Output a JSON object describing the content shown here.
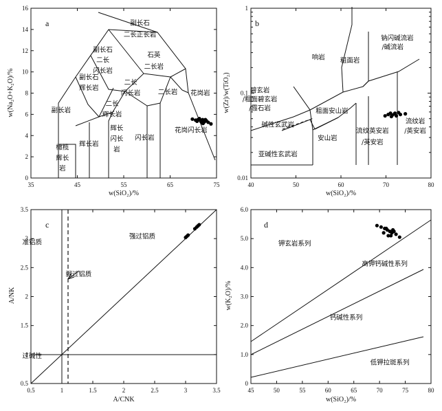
{
  "chart_data": [
    {
      "type": "scatter",
      "panel": "a",
      "xlabel": "w(SiO2)/%",
      "ylabel": "w(Na2O+K2O)/%",
      "xlim": [
        35,
        75
      ],
      "ylim": [
        0,
        16
      ],
      "x_ticks": [
        "35",
        "45",
        "55",
        "65",
        "75"
      ],
      "y_ticks": [
        "0",
        "2",
        "4",
        "6",
        "8",
        "10",
        "12",
        "14",
        "16"
      ],
      "field_labels": [
        {
          "text": "副长石",
          "x": 58.5,
          "y": 14.4
        },
        {
          "text": "二长正长岩",
          "x": 58.5,
          "y": 13.3
        },
        {
          "text": "副长石",
          "x": 50.5,
          "y": 11.9
        },
        {
          "text": "二长",
          "x": 50.5,
          "y": 10.9
        },
        {
          "text": "闪长岩",
          "x": 50.5,
          "y": 9.9
        },
        {
          "text": "石英",
          "x": 61.5,
          "y": 11.4
        },
        {
          "text": "二长岩",
          "x": 61.5,
          "y": 10.3
        },
        {
          "text": "副长石",
          "x": 47.5,
          "y": 9.3
        },
        {
          "text": "辉长岩",
          "x": 47.5,
          "y": 8.3
        },
        {
          "text": "二长",
          "x": 56.5,
          "y": 8.8
        },
        {
          "text": "闪长岩",
          "x": 56.5,
          "y": 7.8
        },
        {
          "text": "二长岩",
          "x": 64.5,
          "y": 7.9
        },
        {
          "text": "花岗岩",
          "x": 71.5,
          "y": 7.8
        },
        {
          "text": "二长",
          "x": 52.5,
          "y": 6.8
        },
        {
          "text": "辉长岩",
          "x": 52.5,
          "y": 5.8
        },
        {
          "text": "副长岩",
          "x": 41.5,
          "y": 6.2
        },
        {
          "text": "辉长",
          "x": 53.5,
          "y": 4.5
        },
        {
          "text": "闪长",
          "x": 53.5,
          "y": 3.5
        },
        {
          "text": "岩",
          "x": 53.5,
          "y": 2.5
        },
        {
          "text": "闪长岩",
          "x": 59.5,
          "y": 3.6
        },
        {
          "text": "花岗闪长岩",
          "x": 69.5,
          "y": 4.3
        },
        {
          "text": "辉长岩",
          "x": 47.5,
          "y": 3.0
        },
        {
          "text": "橄榄",
          "x": 41.8,
          "y": 2.7
        },
        {
          "text": "辉长",
          "x": 41.8,
          "y": 1.7
        },
        {
          "text": "岩",
          "x": 41.8,
          "y": 0.7
        }
      ],
      "series": [
        {
          "x": [
            69.8,
            70.5,
            71.0,
            71.6,
            72.0,
            72.4,
            72.8,
            73.2,
            71.3,
            72.1,
            73.8,
            70.8,
            72.6,
            71.9
          ],
          "y": [
            5.55,
            5.45,
            5.5,
            5.35,
            5.5,
            5.3,
            5.4,
            5.25,
            5.6,
            5.15,
            5.1,
            5.35,
            5.5,
            5.2
          ]
        }
      ]
    },
    {
      "type": "scatter",
      "panel": "b",
      "xlabel": "w(SiO2)/%",
      "ylabel": "w(Zr)/w(TiO2)",
      "xscale": "linear",
      "yscale": "log",
      "xlim": [
        40,
        80
      ],
      "ylim": [
        0.01,
        1
      ],
      "x_ticks": [
        "40",
        "50",
        "60",
        "70",
        "80"
      ],
      "y_ticks": [
        "0.01",
        "0.1",
        "1"
      ],
      "field_labels": [
        {
          "text": "钠闪碱流岩",
          "x": 72.5,
          "y": 0.42
        },
        {
          "text": "/碱流岩",
          "x": 71.5,
          "y": 0.33
        },
        {
          "text": "响岩",
          "x": 55,
          "y": 0.25
        },
        {
          "text": "粗面岩",
          "x": 62,
          "y": 0.23
        },
        {
          "text": "碧玄岩",
          "x": 42,
          "y": 0.102
        },
        {
          "text": "/粗面碧玄岩",
          "x": 42,
          "y": 0.08
        },
        {
          "text": "/霞石岩",
          "x": 42,
          "y": 0.063
        },
        {
          "text": "碱性玄武岩",
          "x": 46,
          "y": 0.04
        },
        {
          "text": "粗面安山岩",
          "x": 58,
          "y": 0.058
        },
        {
          "text": "安山岩",
          "x": 57,
          "y": 0.028
        },
        {
          "text": "流纹英安岩",
          "x": 67,
          "y": 0.034
        },
        {
          "text": "/英安岩",
          "x": 67,
          "y": 0.025
        },
        {
          "text": "流纹岩",
          "x": 76.5,
          "y": 0.044
        },
        {
          "text": "/英安岩",
          "x": 76.5,
          "y": 0.034
        },
        {
          "text": "亚碱性玄武岩",
          "x": 46,
          "y": 0.018
        }
      ],
      "series": [
        {
          "x": [
            69.8,
            70.5,
            71.0,
            71.4,
            71.9,
            72.3,
            72.8,
            73.2,
            71.2,
            72.0,
            74.3
          ],
          "y": [
            0.054,
            0.056,
            0.058,
            0.055,
            0.057,
            0.054,
            0.059,
            0.056,
            0.053,
            0.058,
            0.057
          ]
        }
      ]
    },
    {
      "type": "scatter",
      "panel": "c",
      "xlabel": "A/CNK",
      "ylabel": "A/NK",
      "xlim": [
        0.5,
        3.5
      ],
      "ylim": [
        0.5,
        3.5
      ],
      "x_ticks": [
        "0.5",
        "1",
        "1.5",
        "2",
        "2.5",
        "3",
        "3.5"
      ],
      "y_ticks": [
        "0.5",
        "1",
        "1.5",
        "2",
        "2.5",
        "3",
        "3.5"
      ],
      "field_labels": [
        {
          "text": "强过铝质",
          "x": 2.3,
          "y": 3.0
        },
        {
          "text": "准铝质",
          "x": 0.52,
          "y": 2.9
        },
        {
          "text": "弱过铝质",
          "x": 1.27,
          "y": 2.35
        },
        {
          "text": "过碱性",
          "x": 0.52,
          "y": 0.94
        }
      ],
      "series": [
        {
          "x": [
            3.0,
            3.02,
            3.04,
            3.15,
            3.18,
            3.2,
            3.22
          ],
          "y": [
            3.02,
            3.04,
            3.06,
            3.17,
            3.2,
            3.22,
            3.24
          ]
        }
      ]
    },
    {
      "type": "scatter",
      "panel": "d",
      "xlabel": "w(SiO2)/%",
      "ylabel": "w(K2O)/%",
      "xlim": [
        45,
        80
      ],
      "ylim": [
        0,
        6
      ],
      "x_ticks": [
        "45",
        "50",
        "55",
        "60",
        "65",
        "70",
        "75",
        "80"
      ],
      "y_ticks": [
        "0",
        "1.0",
        "2.0",
        "3.0",
        "4.0",
        "5.0",
        "6.0"
      ],
      "field_labels": [
        {
          "text": "钾玄岩系列",
          "x": 53.5,
          "y": 4.75
        },
        {
          "text": "高钾钙碱性系列",
          "x": 71,
          "y": 4.05
        },
        {
          "text": "钙碱性系列",
          "x": 63.5,
          "y": 2.2
        },
        {
          "text": "低钾拉斑系列",
          "x": 72,
          "y": 0.65
        }
      ],
      "series": [
        {
          "x": [
            69.5,
            70.3,
            71.0,
            71.5,
            72.0,
            72.4,
            72.8,
            73.2,
            71.7,
            72.6,
            73.9,
            70.8,
            71.3,
            72.2
          ],
          "y": [
            5.45,
            5.4,
            5.35,
            5.3,
            5.25,
            5.2,
            5.25,
            5.15,
            5.1,
            5.3,
            5.05,
            5.2,
            5.35,
            5.1
          ]
        }
      ]
    }
  ],
  "panel_letters": {
    "a": "a",
    "b": "b",
    "c": "c",
    "d": "d"
  },
  "axis_titles": {
    "a_x": "w(SiO₂)/%",
    "a_y": "w(Na₂O+K₂O)/%",
    "b_x": "w(SiO₂)/%",
    "b_y": "w(Zr)/w(TiO₂)",
    "c_x": "A/CNK",
    "c_y": "A/NK",
    "d_x": "w(SiO₂)/%",
    "d_y": "w(K₂O)/%"
  }
}
